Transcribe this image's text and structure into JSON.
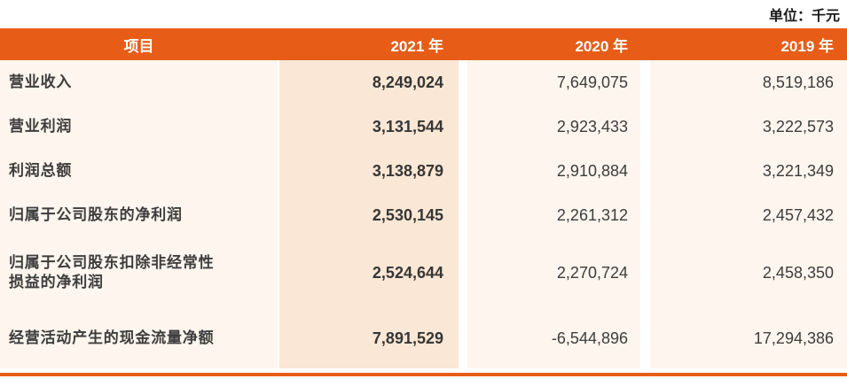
{
  "unit_label": "单位：千元",
  "table": {
    "columns": [
      {
        "label": "项目"
      },
      {
        "label": "2021 年"
      },
      {
        "label": "2020 年"
      },
      {
        "label": "2019 年"
      }
    ],
    "rows": [
      {
        "item": "营业收入",
        "y2021": "8,249,024",
        "y2020": "7,649,075",
        "y2019": "8,519,186"
      },
      {
        "item": "营业利润",
        "y2021": "3,131,544",
        "y2020": "2,923,433",
        "y2019": "3,222,573"
      },
      {
        "item": "利润总额",
        "y2021": "3,138,879",
        "y2020": "2,910,884",
        "y2019": "3,221,349"
      },
      {
        "item": "归属于公司股东的净利润",
        "y2021": "2,530,145",
        "y2020": "2,261,312",
        "y2019": "2,457,432"
      },
      {
        "item": "归属于公司股东扣除非经常性损益的净利润",
        "y2021": "2,524,644",
        "y2020": "2,270,724",
        "y2019": "2,458,350"
      },
      {
        "item": "经营活动产生的现金流量净额",
        "y2021": "7,891,529",
        "y2020": "-6,544,896",
        "y2019": "17,294,386"
      }
    ]
  },
  "colors": {
    "accent_orange": "#E75D17",
    "highlight_column_bg": "#FAE7D5",
    "row_bg": "#FDF5EE",
    "header_text": "#FFFFFF",
    "body_text": "#3D3D3D"
  }
}
